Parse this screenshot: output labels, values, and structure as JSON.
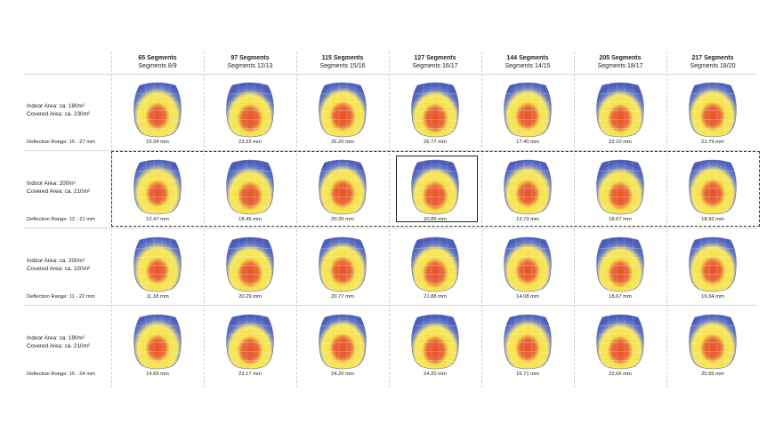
{
  "columns": [
    {
      "segments": "65 Segments",
      "sub": "Segments 8/9"
    },
    {
      "segments": "97 Segments",
      "sub": "Segments 12/13"
    },
    {
      "segments": "115 Segments",
      "sub": "Segments 15/16"
    },
    {
      "segments": "127 Segments",
      "sub": "Segments 16/17"
    },
    {
      "segments": "144 Segments",
      "sub": "Segments 14/15"
    },
    {
      "segments": "205 Segments",
      "sub": "Segments 18/17"
    },
    {
      "segments": "217 Segments",
      "sub": "Segments 18/20"
    }
  ],
  "rows": [
    {
      "indoor": "Indoor Area: ca. 180m²",
      "covered": "Covered Area: ca. 230m²",
      "range": "Deflection Range: 15 - 27 mm",
      "values": [
        "15.34 mm",
        "23.22 mm",
        "26.20 mm",
        "26.77 mm",
        "17.40 mm",
        "22.10 mm",
        "21.79 mm"
      ],
      "intensity": [
        0.55,
        0.75,
        0.85,
        0.85,
        0.65,
        0.72,
        0.7
      ]
    },
    {
      "indoor": "Indoor Area: 200m²",
      "covered": "Covered Area: ca. 210m²",
      "range": "Deflection Range: 12 - 21 mm",
      "values": [
        "12.47 mm",
        "18.45 mm",
        "20.35 mm",
        "20.89 mm",
        "13.73 mm",
        "18.67 mm",
        "18.92 mm"
      ],
      "intensity": [
        0.5,
        0.7,
        0.8,
        0.82,
        0.6,
        0.7,
        0.7
      ]
    },
    {
      "indoor": "Indoor Area: ca. 200m²",
      "covered": "Covered Area: ca. 220m²",
      "range": "Deflection Range: 11 - 22 mm",
      "values": [
        "11.18 mm",
        "20.29 mm",
        "20.77 mm",
        "21.88 mm",
        "14.08 mm",
        "18.67 mm",
        "19.34 mm"
      ],
      "intensity": [
        0.45,
        0.75,
        0.78,
        0.8,
        0.62,
        0.7,
        0.72
      ]
    },
    {
      "indoor": "Indoor Area: ca. 190m²",
      "covered": "Covered Area: ca. 210m²",
      "range": "Deflection Range: 15 - 24 mm",
      "values": [
        "14.65 mm",
        "22.17 mm",
        "24.20 mm",
        "24.20 mm",
        "15.71 mm",
        "22.66 mm",
        "20.95 mm"
      ],
      "intensity": [
        0.55,
        0.75,
        0.82,
        0.82,
        0.62,
        0.75,
        0.7
      ]
    }
  ],
  "colors": {
    "low": "#5a6fc4",
    "mid": "#f5e24a",
    "high": "#e64a19"
  }
}
